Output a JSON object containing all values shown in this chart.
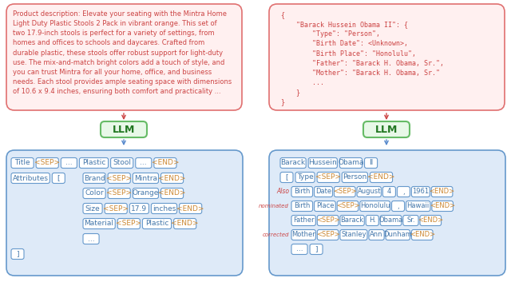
{
  "left_top_text": "Product description: Elevate your seating with the Mintra Home\nLight Duty Plastic Stools 2 Pack in vibrant orange. This set of\ntwo 17.9-inch stools is perfect for a variety of settings, from\nhomes and offices to schools and daycares. Crafted from\ndurable plastic, these stools offer robust support for light-duty\nuse. The mix-and-match bright colors add a touch of style, and\nyou can trust Mintra for all your home, office, and business\nneeds. Each stool provides ample seating space with dimensions\nof 10.6 x 9.4 inches, ensuring both comfort and practicality ...",
  "right_top_text": "{\n    \"Barack Hussein Obama II\": {\n        \"Type\": \"Person\",\n        \"Birth Date\": <Unknown>,\n        \"Birth Place\": \"Honolulu\",\n        \"Father\": \"Barack H. Obama, Sr.\",\n        \"Mother\": \"Barack H. Obama, Sr.\"\n        ...\n    }\n}",
  "llm_text": "LLM",
  "top_box_bg": "#fff0f0",
  "top_box_border": "#e07070",
  "top_text_color": "#cc4444",
  "llm_bg": "#e8f8e8",
  "llm_border": "#66bb66",
  "llm_text_color": "#227722",
  "arrow_color_red": "#cc4444",
  "arrow_color_blue": "#5588cc",
  "bottom_box_bg": "#deeaf8",
  "bottom_box_border": "#6699cc",
  "token_bg": "#ffffff",
  "token_border": "#6699cc",
  "token_text_color": "#4477aa",
  "sep_end_text_color": "#cc8833",
  "label_color": "#cc4444"
}
